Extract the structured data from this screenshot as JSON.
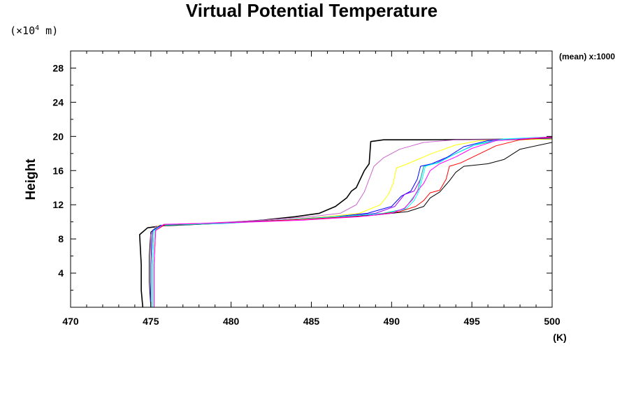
{
  "chart_data": {
    "type": "line",
    "title": "Virtual Potential Temperature",
    "xlabel": "(K)",
    "ylabel": "Height",
    "yunit": "(×10⁴ m)",
    "yunit_parts": {
      "open": "(×10",
      "exp": "4",
      "close": " m)"
    },
    "annotation": "(mean) x:1000",
    "xlim": [
      470,
      500
    ],
    "ylim": [
      0,
      30
    ],
    "xticks": [
      "470",
      "475",
      "480",
      "485",
      "490",
      "495",
      "500"
    ],
    "yticks": [
      "4",
      "8",
      "12",
      "16",
      "20",
      "24",
      "28"
    ],
    "grid": false,
    "series": [
      {
        "color": "#000000",
        "points": [
          [
            474.5,
            0
          ],
          [
            474.4,
            2
          ],
          [
            474.4,
            5
          ],
          [
            474.3,
            8.5
          ],
          [
            474.8,
            9.3
          ],
          [
            476,
            9.6
          ],
          [
            479,
            9.8
          ],
          [
            482,
            10.2
          ],
          [
            484,
            10.6
          ],
          [
            485.5,
            11
          ],
          [
            486.5,
            11.8
          ],
          [
            487.2,
            12.8
          ],
          [
            487.5,
            13.6
          ],
          [
            487.8,
            14
          ],
          [
            488.3,
            16
          ],
          [
            488.6,
            16.8
          ],
          [
            488.7,
            19.4
          ],
          [
            489.5,
            19.6
          ],
          [
            492,
            19.6
          ],
          [
            500,
            19.7
          ]
        ]
      },
      {
        "color": "#000000",
        "points": [
          [
            475,
            0
          ],
          [
            474.9,
            3
          ],
          [
            474.9,
            6
          ],
          [
            475,
            8.8
          ],
          [
            475.5,
            9.5
          ],
          [
            478,
            9.7
          ],
          [
            482,
            10.1
          ],
          [
            486,
            10.5
          ],
          [
            489,
            10.8
          ],
          [
            491,
            11.2
          ],
          [
            492,
            11.8
          ],
          [
            492.4,
            12.8
          ],
          [
            493,
            13.5
          ],
          [
            493.6,
            14.8
          ],
          [
            494,
            15.8
          ],
          [
            494.5,
            16.5
          ],
          [
            496,
            16.8
          ],
          [
            497,
            17.3
          ],
          [
            498,
            18.5
          ],
          [
            500,
            19.3
          ]
        ]
      },
      {
        "color": "#cc66cc",
        "points": [
          [
            475,
            0
          ],
          [
            475,
            4
          ],
          [
            475,
            8.5
          ],
          [
            475.3,
            9.5
          ],
          [
            478,
            9.8
          ],
          [
            482,
            10.2
          ],
          [
            485,
            10.6
          ],
          [
            486.8,
            11
          ],
          [
            487.8,
            12
          ],
          [
            488.3,
            13.5
          ],
          [
            488.5,
            14.5
          ],
          [
            488.9,
            16.5
          ],
          [
            489.5,
            17.5
          ],
          [
            490.5,
            18.5
          ],
          [
            492,
            19.3
          ],
          [
            494,
            19.6
          ],
          [
            500,
            19.7
          ]
        ]
      },
      {
        "color": "#ffff00",
        "points": [
          [
            475,
            0
          ],
          [
            475,
            5
          ],
          [
            475.1,
            9
          ],
          [
            475.5,
            9.6
          ],
          [
            479,
            9.8
          ],
          [
            483,
            10.2
          ],
          [
            486,
            10.6
          ],
          [
            488,
            11
          ],
          [
            489.3,
            12
          ],
          [
            489.8,
            13.2
          ],
          [
            490.1,
            14.5
          ],
          [
            490.3,
            16.3
          ],
          [
            491,
            16.8
          ],
          [
            492.5,
            18
          ],
          [
            494,
            19
          ],
          [
            495.5,
            19.5
          ],
          [
            500,
            19.7
          ]
        ]
      },
      {
        "color": "#0000ff",
        "points": [
          [
            475,
            0
          ],
          [
            475,
            5
          ],
          [
            475.1,
            9
          ],
          [
            475.6,
            9.6
          ],
          [
            479,
            9.8
          ],
          [
            483,
            10.2
          ],
          [
            486.5,
            10.6
          ],
          [
            488.5,
            11
          ],
          [
            490,
            11.8
          ],
          [
            490.6,
            13
          ],
          [
            491.2,
            13.6
          ],
          [
            491.6,
            15
          ],
          [
            491.8,
            16.5
          ],
          [
            492.5,
            16.8
          ],
          [
            493.5,
            17.6
          ],
          [
            494.5,
            18.8
          ],
          [
            496,
            19.5
          ],
          [
            500,
            19.8
          ]
        ]
      },
      {
        "color": "#9900ff",
        "points": [
          [
            475.1,
            0
          ],
          [
            475.1,
            5
          ],
          [
            475.2,
            9
          ],
          [
            475.7,
            9.6
          ],
          [
            479,
            9.8
          ],
          [
            483,
            10.2
          ],
          [
            487,
            10.6
          ],
          [
            489,
            11
          ],
          [
            490.2,
            11.8
          ],
          [
            490.8,
            13.2
          ],
          [
            491.4,
            13.6
          ],
          [
            491.8,
            15
          ],
          [
            492,
            16.5
          ],
          [
            492.8,
            16.9
          ],
          [
            493.8,
            17.8
          ],
          [
            495,
            18.9
          ],
          [
            496.5,
            19.6
          ],
          [
            500,
            19.9
          ]
        ]
      },
      {
        "color": "#00cc99",
        "points": [
          [
            475.1,
            0
          ],
          [
            475.1,
            5
          ],
          [
            475.2,
            9
          ],
          [
            475.8,
            9.6
          ],
          [
            479.5,
            9.8
          ],
          [
            484,
            10.3
          ],
          [
            487.5,
            10.7
          ],
          [
            489.5,
            11
          ],
          [
            490.8,
            11.5
          ],
          [
            491.2,
            12.5
          ],
          [
            491.6,
            13.5
          ],
          [
            491.8,
            15
          ],
          [
            492,
            16.5
          ],
          [
            492.9,
            16.9
          ],
          [
            494,
            18
          ],
          [
            495.2,
            19
          ],
          [
            496.8,
            19.6
          ],
          [
            500,
            19.9
          ]
        ]
      },
      {
        "color": "#00ffff",
        "points": [
          [
            475.1,
            0
          ],
          [
            475.1,
            5
          ],
          [
            475.2,
            9
          ],
          [
            475.8,
            9.7
          ],
          [
            479.5,
            9.8
          ],
          [
            484,
            10.3
          ],
          [
            487.5,
            10.7
          ],
          [
            489.7,
            11
          ],
          [
            490.9,
            11.5
          ],
          [
            491.4,
            12.5
          ],
          [
            491.7,
            13.6
          ],
          [
            491.9,
            15
          ],
          [
            492.1,
            16.5
          ],
          [
            493,
            17
          ],
          [
            494.1,
            18.1
          ],
          [
            495.3,
            19.1
          ],
          [
            497,
            19.7
          ],
          [
            500,
            19.95
          ]
        ]
      },
      {
        "color": "#ff0000",
        "points": [
          [
            475.2,
            0
          ],
          [
            475.2,
            5
          ],
          [
            475.3,
            9
          ],
          [
            475.9,
            9.7
          ],
          [
            480,
            9.9
          ],
          [
            484.5,
            10.3
          ],
          [
            488.5,
            10.7
          ],
          [
            490.5,
            11.2
          ],
          [
            491.5,
            11.8
          ],
          [
            492,
            12.5
          ],
          [
            492.4,
            13.4
          ],
          [
            493,
            13.7
          ],
          [
            493.4,
            15
          ],
          [
            493.6,
            16.5
          ],
          [
            494.3,
            16.9
          ],
          [
            495.3,
            17.8
          ],
          [
            496.5,
            18.9
          ],
          [
            498,
            19.6
          ],
          [
            500,
            19.9
          ]
        ]
      },
      {
        "color": "#ff00ff",
        "points": [
          [
            475.2,
            0
          ],
          [
            475.2,
            5
          ],
          [
            475.3,
            9
          ],
          [
            475.8,
            9.7
          ],
          [
            480,
            9.9
          ],
          [
            484.5,
            10.2
          ],
          [
            488,
            10.6
          ],
          [
            490,
            11
          ],
          [
            490.8,
            11.6
          ],
          [
            491.3,
            12.6
          ],
          [
            491.6,
            13.6
          ],
          [
            492,
            14.5
          ],
          [
            492.4,
            16
          ],
          [
            493,
            16.8
          ],
          [
            494,
            17.6
          ],
          [
            495,
            18.6
          ],
          [
            496.5,
            19.5
          ],
          [
            500,
            19.95
          ]
        ]
      }
    ]
  }
}
